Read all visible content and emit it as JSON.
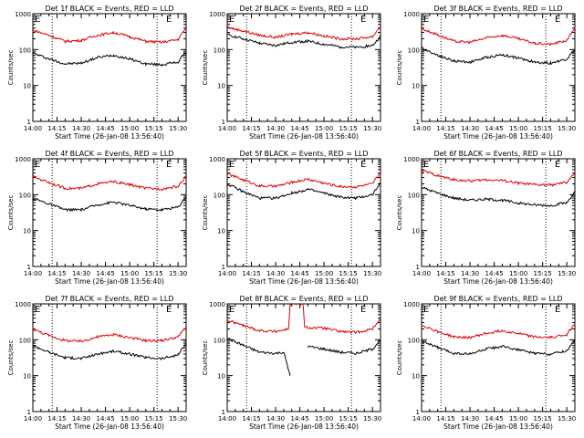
{
  "figure": {
    "x_ticks": [
      "14:00",
      "14:15",
      "14:30",
      "14:45",
      "15:00",
      "15:15",
      "15:30"
    ],
    "y_ticks": [
      "1",
      "10",
      "100",
      "1000"
    ],
    "xlabel": "Start Time (26-Jan-08 13:56:40)",
    "ylabel": "Counts/sec",
    "colors": {
      "events": "#000000",
      "lld": "#dd0000",
      "axes": "#000000"
    }
  },
  "chart_data": [
    {
      "type": "line",
      "title": "Det 1f BLACK = Events, RED = LLD",
      "corner_labels": [
        "E",
        "E"
      ],
      "x_time_start": "14:00",
      "x_time_end": "15:35",
      "ylim": [
        1,
        1000
      ],
      "yscale": "log",
      "dashed_markers_x": [
        "14:12",
        "15:17"
      ],
      "series": [
        {
          "name": "Events",
          "x": [
            "14:00",
            "14:10",
            "14:20",
            "14:30",
            "14:40",
            "14:50",
            "15:00",
            "15:10",
            "15:20",
            "15:30",
            "15:35"
          ],
          "values": [
            80,
            55,
            40,
            42,
            60,
            70,
            55,
            40,
            38,
            45,
            90
          ]
        },
        {
          "name": "LLD",
          "x": [
            "14:00",
            "14:10",
            "14:20",
            "14:30",
            "14:40",
            "14:50",
            "15:00",
            "15:10",
            "15:20",
            "15:30",
            "15:35"
          ],
          "values": [
            350,
            250,
            170,
            180,
            250,
            300,
            230,
            170,
            160,
            190,
            420
          ]
        }
      ]
    },
    {
      "type": "line",
      "title": "Det 2f BLACK = Events, RED = LLD",
      "corner_labels": [
        "E",
        "E"
      ],
      "x_time_start": "14:00",
      "x_time_end": "15:35",
      "ylim": [
        1,
        1000
      ],
      "yscale": "log",
      "dashed_markers_x": [
        "14:12",
        "15:17"
      ],
      "series": [
        {
          "name": "Events",
          "x": [
            "14:00",
            "14:10",
            "14:20",
            "14:30",
            "14:40",
            "14:50",
            "15:00",
            "15:10",
            "15:20",
            "15:30",
            "15:35"
          ],
          "values": [
            260,
            200,
            150,
            130,
            160,
            170,
            140,
            120,
            115,
            130,
            230
          ]
        },
        {
          "name": "LLD",
          "x": [
            "14:00",
            "14:10",
            "14:20",
            "14:30",
            "14:40",
            "14:50",
            "15:00",
            "15:10",
            "15:20",
            "15:30",
            "15:35"
          ],
          "values": [
            420,
            330,
            250,
            220,
            270,
            300,
            240,
            200,
            200,
            230,
            450
          ]
        }
      ]
    },
    {
      "type": "line",
      "title": "Det 3f BLACK = Events, RED = LLD",
      "corner_labels": [
        "E",
        "E"
      ],
      "x_time_start": "14:00",
      "x_time_end": "15:35",
      "ylim": [
        1,
        1000
      ],
      "yscale": "log",
      "dashed_markers_x": [
        "14:12",
        "15:17"
      ],
      "series": [
        {
          "name": "Events",
          "x": [
            "14:00",
            "14:10",
            "14:20",
            "14:30",
            "14:40",
            "14:50",
            "15:00",
            "15:10",
            "15:20",
            "15:30",
            "15:35"
          ],
          "values": [
            110,
            70,
            48,
            45,
            60,
            72,
            58,
            45,
            42,
            55,
            100
          ]
        },
        {
          "name": "LLD",
          "x": [
            "14:00",
            "14:10",
            "14:20",
            "14:30",
            "14:40",
            "14:50",
            "15:00",
            "15:10",
            "15:20",
            "15:30",
            "15:35"
          ],
          "values": [
            380,
            260,
            170,
            160,
            210,
            250,
            200,
            150,
            140,
            180,
            420
          ]
        }
      ]
    },
    {
      "type": "line",
      "title": "Det 4f BLACK = Events, RED = LLD",
      "corner_labels": [
        "E",
        "E"
      ],
      "x_time_start": "14:00",
      "x_time_end": "15:35",
      "ylim": [
        1,
        1000
      ],
      "yscale": "log",
      "dashed_markers_x": [
        "14:12",
        "15:17"
      ],
      "series": [
        {
          "name": "Events",
          "x": [
            "14:00",
            "14:10",
            "14:20",
            "14:30",
            "14:40",
            "14:50",
            "15:00",
            "15:10",
            "15:20",
            "15:30",
            "15:35"
          ],
          "values": [
            80,
            55,
            38,
            38,
            52,
            62,
            50,
            40,
            38,
            45,
            90
          ]
        },
        {
          "name": "LLD",
          "x": [
            "14:00",
            "14:10",
            "14:20",
            "14:30",
            "14:40",
            "14:50",
            "15:00",
            "15:10",
            "15:20",
            "15:30",
            "15:35"
          ],
          "values": [
            320,
            220,
            150,
            150,
            200,
            230,
            190,
            150,
            145,
            170,
            330
          ]
        }
      ]
    },
    {
      "type": "line",
      "title": "Det 5f BLACK = Events, RED = LLD",
      "corner_labels": [
        "E",
        "E"
      ],
      "x_time_start": "14:00",
      "x_time_end": "15:35",
      "ylim": [
        1,
        1000
      ],
      "yscale": "log",
      "dashed_markers_x": [
        "14:12",
        "15:17"
      ],
      "series": [
        {
          "name": "Events",
          "x": [
            "14:00",
            "14:10",
            "14:20",
            "14:30",
            "14:40",
            "14:50",
            "15:00",
            "15:10",
            "15:20",
            "15:30",
            "15:35"
          ],
          "values": [
            200,
            120,
            80,
            80,
            110,
            140,
            110,
            85,
            80,
            100,
            210
          ]
        },
        {
          "name": "LLD",
          "x": [
            "14:00",
            "14:10",
            "14:20",
            "14:30",
            "14:40",
            "14:50",
            "15:00",
            "15:10",
            "15:20",
            "15:30",
            "15:35"
          ],
          "values": [
            380,
            260,
            175,
            170,
            220,
            270,
            210,
            170,
            165,
            200,
            420
          ]
        }
      ]
    },
    {
      "type": "line",
      "title": "Det 6f BLACK = Events, RED = LLD",
      "corner_labels": [
        "E",
        "E"
      ],
      "x_time_start": "14:00",
      "x_time_end": "15:35",
      "ylim": [
        1,
        1000
      ],
      "yscale": "log",
      "dashed_markers_x": [
        "14:12",
        "15:17"
      ],
      "series": [
        {
          "name": "Events",
          "x": [
            "14:00",
            "14:10",
            "14:20",
            "14:30",
            "14:40",
            "14:50",
            "15:00",
            "15:10",
            "15:20",
            "15:30",
            "15:35"
          ],
          "values": [
            160,
            110,
            80,
            70,
            75,
            70,
            58,
            52,
            50,
            60,
            120
          ]
        },
        {
          "name": "LLD",
          "x": [
            "14:00",
            "14:10",
            "14:20",
            "14:30",
            "14:40",
            "14:50",
            "15:00",
            "15:10",
            "15:20",
            "15:30",
            "15:35"
          ],
          "values": [
            480,
            340,
            260,
            240,
            260,
            250,
            210,
            190,
            185,
            220,
            400
          ]
        }
      ]
    },
    {
      "type": "line",
      "title": "Det 7f BLACK = Events, RED = LLD",
      "corner_labels": [
        "E",
        "E"
      ],
      "x_time_start": "14:00",
      "x_time_end": "15:35",
      "ylim": [
        1,
        1000
      ],
      "yscale": "log",
      "dashed_markers_x": [
        "14:12",
        "15:17"
      ],
      "series": [
        {
          "name": "Events",
          "x": [
            "14:00",
            "14:10",
            "14:20",
            "14:30",
            "14:40",
            "14:50",
            "15:00",
            "15:10",
            "15:20",
            "15:30",
            "15:35"
          ],
          "values": [
            70,
            45,
            32,
            30,
            40,
            48,
            40,
            32,
            30,
            38,
            80
          ]
        },
        {
          "name": "LLD",
          "x": [
            "14:00",
            "14:10",
            "14:20",
            "14:30",
            "14:40",
            "14:50",
            "15:00",
            "15:10",
            "15:20",
            "15:30",
            "15:35"
          ],
          "values": [
            200,
            130,
            95,
            90,
            120,
            140,
            115,
            95,
            95,
            120,
            230
          ]
        }
      ]
    },
    {
      "type": "line",
      "title": "Det 8f BLACK = Events, RED = LLD",
      "corner_labels": [
        "E",
        "E"
      ],
      "x_time_start": "14:00",
      "x_time_end": "15:35",
      "ylim": [
        1,
        1000
      ],
      "yscale": "log",
      "dashed_markers_x": [
        "14:12",
        "15:17"
      ],
      "series": [
        {
          "name": "Events",
          "x": [
            "14:00",
            "14:10",
            "14:20",
            "14:30",
            "14:35",
            "14:39",
            "14:40",
            "14:50",
            "15:00",
            "15:10",
            "15:20",
            "15:30",
            "15:35"
          ],
          "values": [
            110,
            70,
            45,
            42,
            45,
            10,
            null,
            65,
            55,
            45,
            42,
            55,
            100
          ]
        },
        {
          "name": "LLD",
          "x": [
            "14:00",
            "14:10",
            "14:20",
            "14:30",
            "14:38",
            "14:39",
            "14:47",
            "14:48",
            "15:00",
            "15:10",
            "15:20",
            "15:30",
            "15:35"
          ],
          "values": [
            350,
            250,
            180,
            170,
            200,
            1000,
            1000,
            220,
            210,
            170,
            160,
            200,
            400
          ]
        }
      ]
    },
    {
      "type": "line",
      "title": "Det 9f BLACK = Events, RED = LLD",
      "corner_labels": [
        "E",
        "E"
      ],
      "x_time_start": "14:00",
      "x_time_end": "15:35",
      "ylim": [
        1,
        1000
      ],
      "yscale": "log",
      "dashed_markers_x": [
        "14:12",
        "15:17"
      ],
      "series": [
        {
          "name": "Events",
          "x": [
            "14:00",
            "14:10",
            "14:20",
            "14:30",
            "14:40",
            "14:50",
            "15:00",
            "15:10",
            "15:20",
            "15:30",
            "15:35"
          ],
          "values": [
            95,
            60,
            42,
            40,
            55,
            65,
            52,
            42,
            40,
            50,
            95
          ]
        },
        {
          "name": "LLD",
          "x": [
            "14:00",
            "14:10",
            "14:20",
            "14:30",
            "14:40",
            "14:50",
            "15:00",
            "15:10",
            "15:20",
            "15:30",
            "15:35"
          ],
          "values": [
            260,
            170,
            120,
            115,
            150,
            180,
            150,
            120,
            115,
            140,
            280
          ]
        }
      ]
    }
  ]
}
